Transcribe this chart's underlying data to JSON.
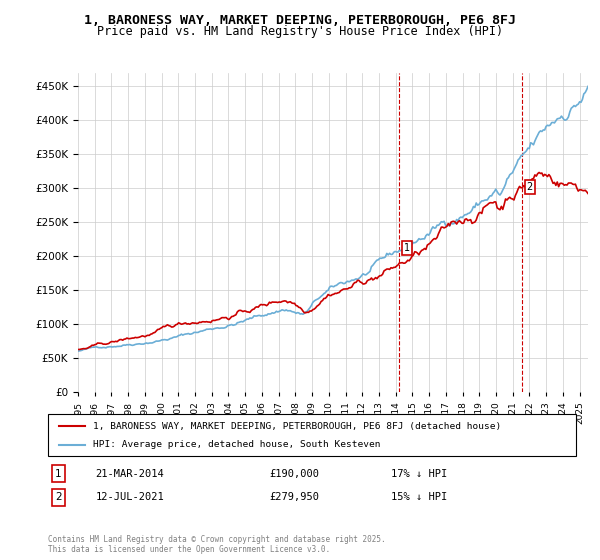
{
  "title_line1": "1, BARONESS WAY, MARKET DEEPING, PETERBOROUGH, PE6 8FJ",
  "title_line2": "Price paid vs. HM Land Registry's House Price Index (HPI)",
  "ylabel_ticks": [
    "£0",
    "£50K",
    "£100K",
    "£150K",
    "£200K",
    "£250K",
    "£300K",
    "£350K",
    "£400K",
    "£450K"
  ],
  "ytick_values": [
    0,
    50000,
    100000,
    150000,
    200000,
    250000,
    300000,
    350000,
    400000,
    450000
  ],
  "ylim": [
    0,
    470000
  ],
  "xlim_start": 1995.0,
  "xlim_end": 2025.5,
  "sale1_date": 2014.22,
  "sale1_price": 190000,
  "sale1_label": "1",
  "sale2_date": 2021.53,
  "sale2_price": 279950,
  "sale2_label": "2",
  "hpi_color": "#6baed6",
  "price_color": "#cc0000",
  "vline_color": "#cc0000",
  "grid_color": "#cccccc",
  "background_color": "#ffffff",
  "legend_label_red": "1, BARONESS WAY, MARKET DEEPING, PETERBOROUGH, PE6 8FJ (detached house)",
  "legend_label_blue": "HPI: Average price, detached house, South Kesteven",
  "annotation1_text": "21-MAR-2014         £190,000         17% ↓ HPI",
  "annotation2_text": "12-JUL-2021         £279,950         15% ↓ HPI",
  "footer_text": "Contains HM Land Registry data © Crown copyright and database right 2025.\nThis data is licensed under the Open Government Licence v3.0.",
  "marker_box_color": "#cc0000"
}
